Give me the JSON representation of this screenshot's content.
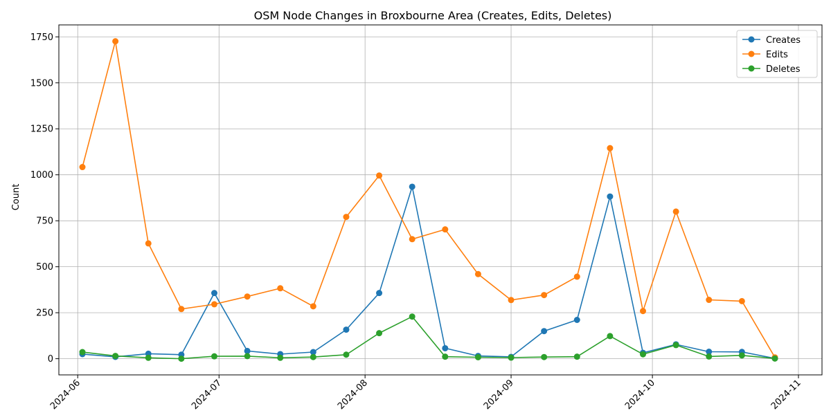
{
  "chart_data": {
    "type": "line",
    "title": "OSM Node Changes in Broxbourne Area (Creates, Edits, Deletes)",
    "xlabel": "",
    "ylabel": "Count",
    "x_ticks": [
      "2024-06",
      "2024-07",
      "2024-08",
      "2024-09",
      "2024-10",
      "2024-11"
    ],
    "y_ticks": [
      0,
      250,
      500,
      750,
      1000,
      1250,
      1500,
      1750
    ],
    "xlim": [
      "2024-05-28",
      "2024-11-06"
    ],
    "ylim": [
      -88,
      1815
    ],
    "grid": true,
    "legend_position": "top-right",
    "x": [
      "2024-06-02",
      "2024-06-09",
      "2024-06-16",
      "2024-06-23",
      "2024-06-30",
      "2024-07-07",
      "2024-07-14",
      "2024-07-21",
      "2024-07-28",
      "2024-08-04",
      "2024-08-11",
      "2024-08-18",
      "2024-08-25",
      "2024-09-01",
      "2024-09-08",
      "2024-09-15",
      "2024-09-22",
      "2024-09-29",
      "2024-10-06",
      "2024-10-13",
      "2024-10-20",
      "2024-10-27"
    ],
    "series": [
      {
        "name": "Creates",
        "color": "#1f77b4",
        "values": [
          25,
          10,
          27,
          22,
          357,
          42,
          25,
          36,
          158,
          357,
          935,
          57,
          15,
          10,
          150,
          211,
          882,
          32,
          78,
          38,
          37,
          2
        ]
      },
      {
        "name": "Edits",
        "color": "#ff7f0e",
        "values": [
          1042,
          1726,
          627,
          270,
          296,
          338,
          383,
          285,
          771,
          996,
          650,
          703,
          460,
          319,
          346,
          446,
          1145,
          259,
          800,
          320,
          313,
          7
        ]
      },
      {
        "name": "Deletes",
        "color": "#2ca02c",
        "values": [
          36,
          15,
          5,
          0,
          13,
          14,
          5,
          9,
          22,
          139,
          229,
          11,
          8,
          6,
          9,
          11,
          123,
          24,
          74,
          12,
          18,
          1
        ]
      }
    ]
  }
}
